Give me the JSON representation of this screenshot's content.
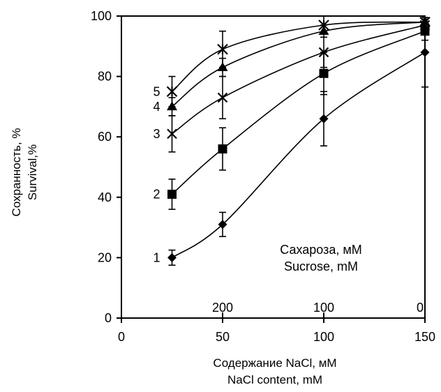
{
  "chart_data": {
    "type": "line",
    "title": "",
    "xlabel": [
      "Содержание NaCl, мМ",
      "NaCl content, mM"
    ],
    "ylabel": [
      "Сохранность, %",
      "Survival,%"
    ],
    "xlim": [
      0,
      150
    ],
    "ylim": [
      0,
      100
    ],
    "x_ticks": [
      0,
      50,
      100,
      150
    ],
    "y_ticks": [
      0,
      20,
      40,
      60,
      80,
      100
    ],
    "grid": false,
    "secondary_axis": {
      "label": [
        "Сахароза, мМ",
        "Sucrose, mM"
      ],
      "ticks": [
        {
          "x": 50,
          "label": "200"
        },
        {
          "x": 100,
          "label": "100"
        },
        {
          "x": 150,
          "label": "0"
        }
      ]
    },
    "x": [
      25,
      50,
      100,
      150
    ],
    "series": [
      {
        "name": "1",
        "marker": "diamond",
        "values": [
          20,
          31,
          66,
          88
        ],
        "errors": [
          2.5,
          4,
          9,
          11.5
        ]
      },
      {
        "name": "2",
        "marker": "square",
        "values": [
          41,
          56,
          81,
          95
        ],
        "errors": [
          5,
          7,
          7,
          3
        ]
      },
      {
        "name": "3",
        "marker": "x",
        "values": [
          61,
          73,
          88,
          97
        ],
        "errors": [
          6,
          7,
          5,
          2
        ]
      },
      {
        "name": "4",
        "marker": "triangle",
        "values": [
          70,
          83,
          95,
          98
        ],
        "errors": [
          3,
          3,
          2,
          1.5
        ]
      },
      {
        "name": "5",
        "marker": "star",
        "values": [
          75,
          89,
          97,
          98
        ],
        "errors": [
          5,
          6,
          3,
          1.5
        ]
      }
    ]
  }
}
